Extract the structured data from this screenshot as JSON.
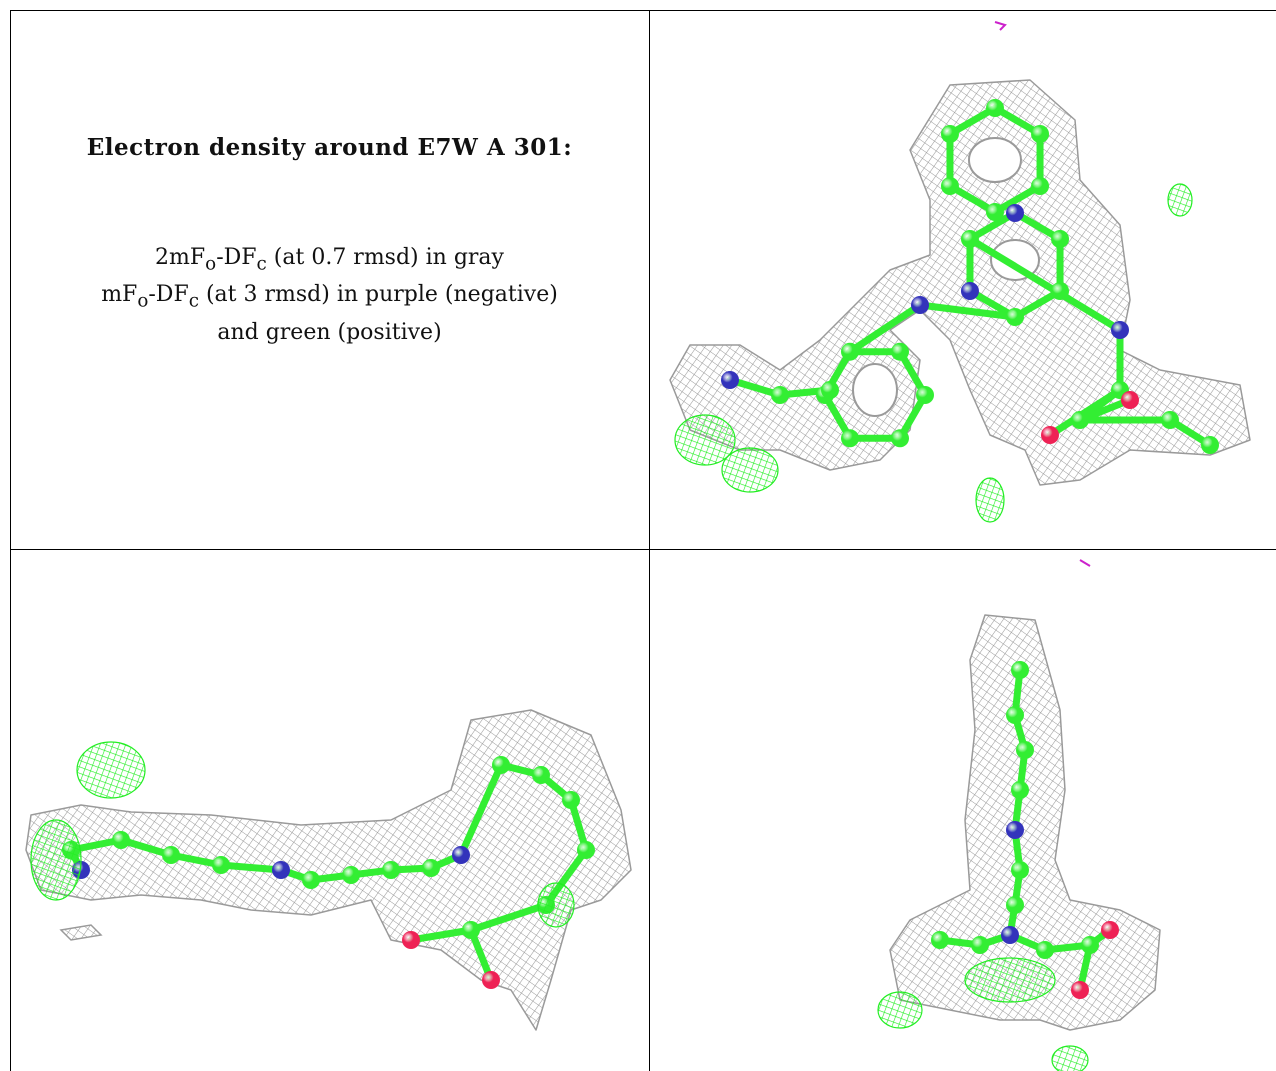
{
  "caption": {
    "title": "Electron density around E7W A 301:",
    "line1_prefix": "2mF",
    "line1_sub_o": "o",
    "line1_mid": "-DF",
    "line1_sub_c": "c",
    "line1_suffix": " (at 0.7 rmsd) in gray",
    "line2_prefix": "mF",
    "line2_sub_o": "o",
    "line2_mid": "-DF",
    "line2_sub_c": "c",
    "line2_suffix": " (at 3 rmsd) in purple (negative)",
    "line3": "and green (positive)"
  },
  "colors": {
    "mesh_gray": "#9a9a9a",
    "carbon_green": "#33ee33",
    "positive_green": "#22ee22",
    "nitrogen_blue": "#3333bb",
    "oxygen_red": "#ee2255",
    "negative_purple": "#cc22cc"
  },
  "panels": [
    {
      "view": "top-right"
    },
    {
      "view": "bottom-left"
    },
    {
      "view": "bottom-right"
    }
  ]
}
